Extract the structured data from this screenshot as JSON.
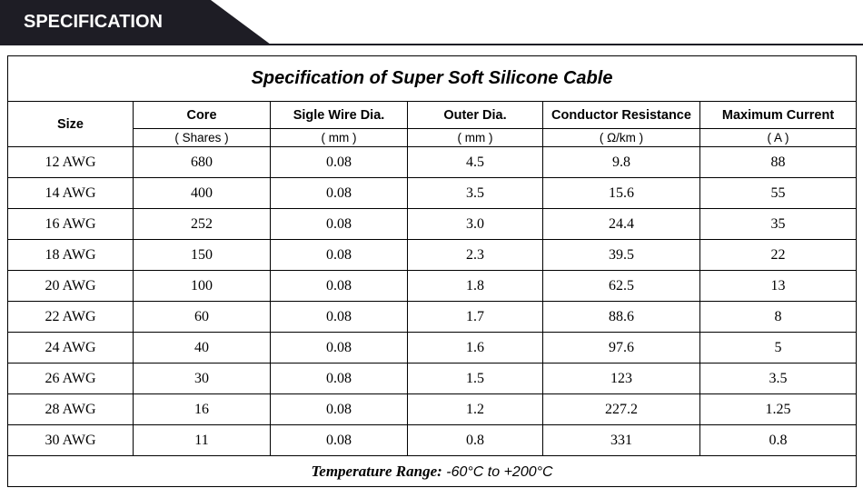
{
  "banner": {
    "title": "SPECIFICATION",
    "bg_color": "#1e1d25",
    "text_color": "#ffffff"
  },
  "table": {
    "title": "Specification of Super Soft Silicone Cable",
    "columns": [
      {
        "label": "Size",
        "unit": ""
      },
      {
        "label": "Core",
        "unit": "( Shares )"
      },
      {
        "label": "Sigle Wire Dia.",
        "unit": "( mm )"
      },
      {
        "label": "Outer Dia.",
        "unit": "( mm )"
      },
      {
        "label": "Conductor Resistance",
        "unit": "( Ω/km )"
      },
      {
        "label": "Maximum Current",
        "unit": "( A )"
      }
    ],
    "rows": [
      [
        "12 AWG",
        "680",
        "0.08",
        "4.5",
        "9.8",
        "88"
      ],
      [
        "14 AWG",
        "400",
        "0.08",
        "3.5",
        "15.6",
        "55"
      ],
      [
        "16 AWG",
        "252",
        "0.08",
        "3.0",
        "24.4",
        "35"
      ],
      [
        "18 AWG",
        "150",
        "0.08",
        "2.3",
        "39.5",
        "22"
      ],
      [
        "20 AWG",
        "100",
        "0.08",
        "1.8",
        "62.5",
        "13"
      ],
      [
        "22 AWG",
        "60",
        "0.08",
        "1.7",
        "88.6",
        "8"
      ],
      [
        "24 AWG",
        "40",
        "0.08",
        "1.6",
        "97.6",
        "5"
      ],
      [
        "26 AWG",
        "30",
        "0.08",
        "1.5",
        "123",
        "3.5"
      ],
      [
        "28 AWG",
        "16",
        "0.08",
        "1.2",
        "227.2",
        "1.25"
      ],
      [
        "30 AWG",
        "11",
        "0.08",
        "0.8",
        "331",
        "0.8"
      ]
    ],
    "footer": {
      "label": "Temperature Range:",
      "value": " -60°C to +200°C"
    }
  }
}
